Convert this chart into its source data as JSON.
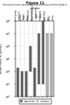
{
  "background": "#ffffff",
  "title_top": "Figure 11",
  "subtitle": "Overview of molar mass determination methods and their fields of application",
  "methods": [
    "End group\nanalysis",
    "Ebullio-\nscopy",
    "Cryo-\nscopy",
    "Membrane\nosmometry",
    "Vapor pressure\nosmometry",
    "Light\nscattering",
    "Ultra-\ncentrifuge",
    "GPC/\nSEC",
    "Visco-\nmetry"
  ],
  "method_types": [
    "abs",
    "abs",
    "abs",
    "abs",
    "abs",
    "abs",
    "abs",
    "rel",
    "rel"
  ],
  "ranges_log10": [
    [
      2,
      4.3
    ],
    [
      2,
      4.0
    ],
    [
      2,
      4.0
    ],
    [
      4.0,
      6.0
    ],
    [
      2,
      4.3
    ],
    [
      3.0,
      7.0
    ],
    [
      3.0,
      8.0
    ],
    [
      2,
      7.0
    ],
    [
      2,
      7.0
    ]
  ],
  "ymin": 2,
  "ymax": 8,
  "yticks": [
    2,
    3,
    4,
    5,
    6,
    7,
    8
  ],
  "bar_color_abs": "#666666",
  "bar_color_rel": "#bbbbbb",
  "bar_color_outline": "#333333",
  "grid_color": "#cccccc",
  "text_color": "#111111",
  "col_sep_color": "#aaaaaa"
}
